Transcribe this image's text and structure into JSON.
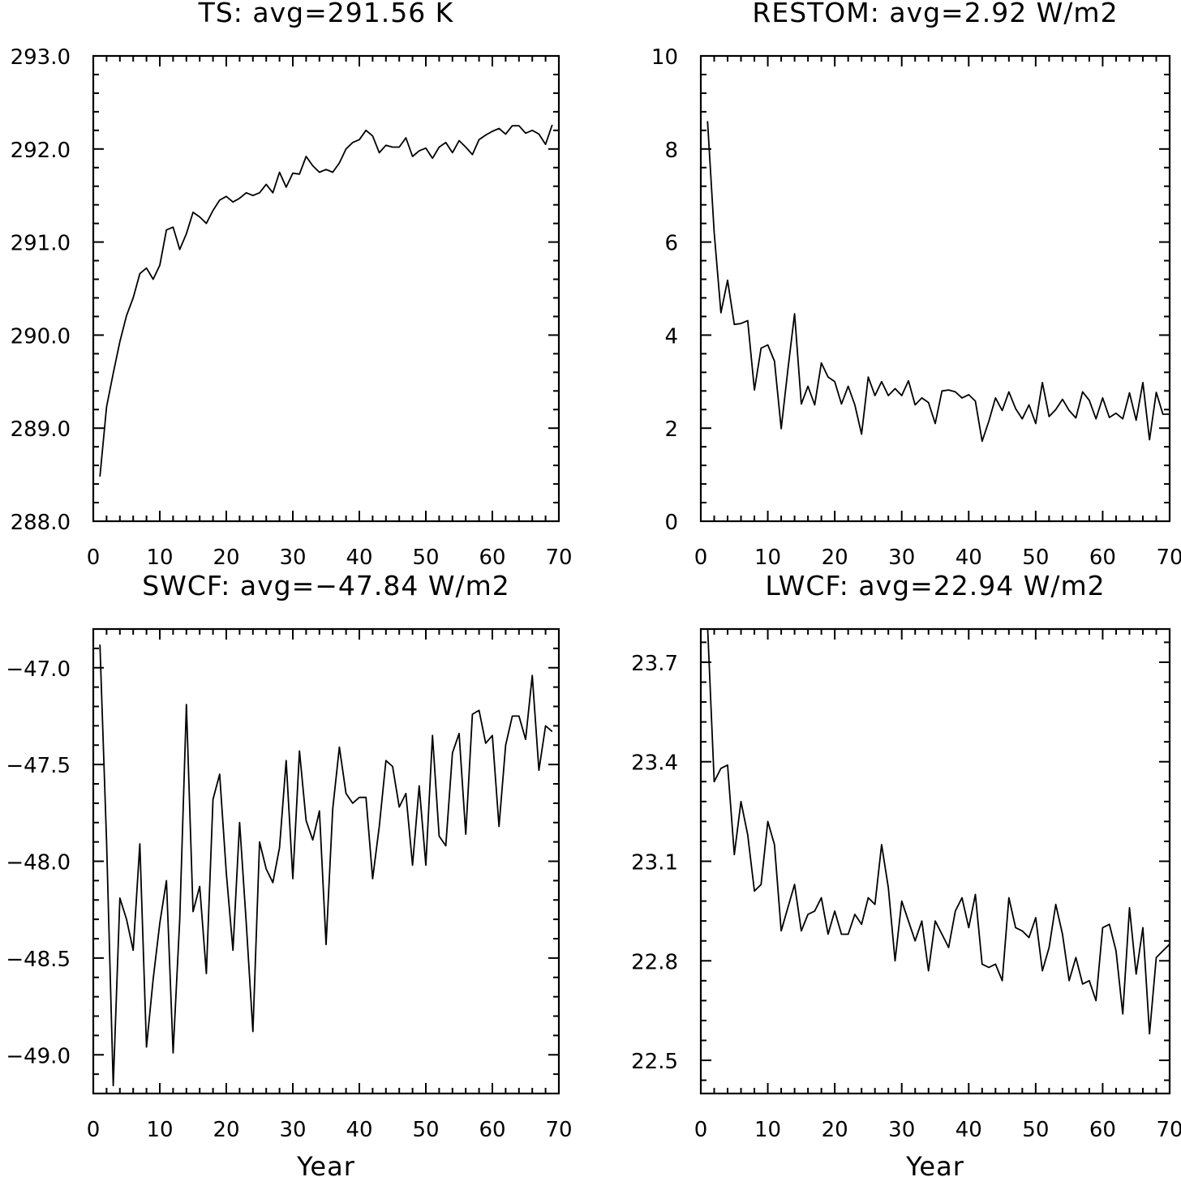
{
  "chart_data": [
    {
      "type": "line",
      "title": "TS: avg=291.56 K",
      "xlabel": "",
      "ylabel": "",
      "xlim": [
        0,
        70
      ],
      "ylim": [
        288.0,
        293.0
      ],
      "xticks": [
        0,
        10,
        20,
        30,
        40,
        50,
        60,
        70
      ],
      "xtick_labels": [
        "0",
        "10",
        "20",
        "30",
        "40",
        "50",
        "60",
        "70"
      ],
      "yticks": [
        288.0,
        289.0,
        290.0,
        291.0,
        292.0,
        293.0
      ],
      "ytick_labels": [
        "288.0",
        "289.0",
        "290.0",
        "291.0",
        "292.0",
        "293.0"
      ],
      "grid": false,
      "x": [
        1,
        2,
        3,
        4,
        5,
        6,
        7,
        8,
        9,
        10,
        11,
        12,
        13,
        14,
        15,
        16,
        17,
        18,
        19,
        20,
        21,
        22,
        23,
        24,
        25,
        26,
        27,
        28,
        29,
        30,
        31,
        32,
        33,
        34,
        35,
        36,
        37,
        38,
        39,
        40,
        41,
        42,
        43,
        44,
        45,
        46,
        47,
        48,
        49,
        50,
        51,
        52,
        53,
        54,
        55,
        56,
        57,
        58,
        59,
        60,
        61,
        62,
        63,
        64,
        65,
        66,
        67,
        68,
        69
      ],
      "series": [
        {
          "values": [
            288.48,
            289.23,
            289.59,
            289.93,
            290.21,
            290.4,
            290.66,
            290.72,
            290.6,
            290.75,
            291.13,
            291.16,
            290.92,
            291.09,
            291.32,
            291.27,
            291.2,
            291.34,
            291.45,
            291.49,
            291.43,
            291.47,
            291.53,
            291.5,
            291.53,
            291.62,
            291.53,
            291.75,
            291.59,
            291.74,
            291.73,
            291.92,
            291.82,
            291.75,
            291.78,
            291.75,
            291.85,
            292.0,
            292.07,
            292.1,
            292.2,
            292.14,
            291.96,
            292.04,
            292.02,
            292.02,
            292.12,
            291.92,
            291.98,
            292.01,
            291.9,
            292.02,
            292.07,
            291.96,
            292.09,
            292.02,
            291.94,
            292.1,
            292.15,
            292.19,
            292.22,
            292.16,
            292.25,
            292.25,
            292.17,
            292.2,
            292.16,
            292.05,
            292.26
          ]
        }
      ]
    },
    {
      "type": "line",
      "title": "RESTOM: avg=2.92 W/m2",
      "xlabel": "",
      "ylabel": "",
      "xlim": [
        0,
        70
      ],
      "ylim": [
        0,
        10
      ],
      "xticks": [
        0,
        10,
        20,
        30,
        40,
        50,
        60,
        70
      ],
      "xtick_labels": [
        "0",
        "10",
        "20",
        "30",
        "40",
        "50",
        "60",
        "70"
      ],
      "yticks": [
        0,
        2,
        4,
        6,
        8,
        10
      ],
      "ytick_labels": [
        "0",
        "2",
        "4",
        "6",
        "8",
        "10"
      ],
      "grid": false,
      "x": [
        1,
        2,
        3,
        4,
        5,
        6,
        7,
        8,
        9,
        10,
        11,
        12,
        13,
        14,
        15,
        16,
        17,
        18,
        19,
        20,
        21,
        22,
        23,
        24,
        25,
        26,
        27,
        28,
        29,
        30,
        31,
        32,
        33,
        34,
        35,
        36,
        37,
        38,
        39,
        40,
        41,
        42,
        43,
        44,
        45,
        46,
        47,
        48,
        49,
        50,
        51,
        52,
        53,
        54,
        55,
        56,
        57,
        58,
        59,
        60,
        61,
        62,
        63,
        64,
        65,
        66,
        67,
        68,
        69,
        70
      ],
      "series": [
        {
          "values": [
            8.6,
            6.2,
            4.48,
            5.18,
            4.23,
            4.25,
            4.31,
            2.82,
            3.72,
            3.79,
            3.44,
            1.99,
            3.25,
            4.46,
            2.52,
            2.9,
            2.5,
            3.4,
            3.1,
            3.0,
            2.52,
            2.9,
            2.5,
            1.87,
            3.1,
            2.7,
            3.0,
            2.7,
            2.85,
            2.7,
            3.02,
            2.5,
            2.65,
            2.55,
            2.1,
            2.8,
            2.82,
            2.78,
            2.65,
            2.72,
            2.58,
            1.72,
            2.15,
            2.65,
            2.38,
            2.78,
            2.42,
            2.2,
            2.5,
            2.1,
            2.98,
            2.25,
            2.4,
            2.62,
            2.38,
            2.22,
            2.78,
            2.6,
            2.2,
            2.65,
            2.23,
            2.32,
            2.2,
            2.76,
            2.17,
            2.98,
            1.75,
            2.77,
            2.3,
            2.3
          ]
        }
      ]
    },
    {
      "type": "line",
      "title": "SWCF: avg=−47.84 W/m2",
      "xlabel": "Year",
      "ylabel": "",
      "xlim": [
        0,
        70
      ],
      "ylim": [
        -49.2,
        -46.8
      ],
      "xticks": [
        0,
        10,
        20,
        30,
        40,
        50,
        60,
        70
      ],
      "xtick_labels": [
        "0",
        "10",
        "20",
        "30",
        "40",
        "50",
        "60",
        "70"
      ],
      "yticks": [
        -49.0,
        -48.5,
        -48.0,
        -47.5,
        -47.0
      ],
      "ytick_labels": [
        "−49.0",
        "−48.5",
        "−48.0",
        "−47.5",
        "−47.0"
      ],
      "grid": false,
      "x": [
        1,
        2,
        3,
        4,
        5,
        6,
        7,
        8,
        9,
        10,
        11,
        12,
        13,
        14,
        15,
        16,
        17,
        18,
        19,
        20,
        21,
        22,
        23,
        24,
        25,
        26,
        27,
        28,
        29,
        30,
        31,
        32,
        33,
        34,
        35,
        36,
        37,
        38,
        39,
        40,
        41,
        42,
        43,
        44,
        45,
        46,
        47,
        48,
        49,
        50,
        51,
        52,
        53,
        54,
        55,
        56,
        57,
        58,
        59,
        60,
        61,
        62,
        63,
        64,
        65,
        66,
        67,
        68,
        69
      ],
      "series": [
        {
          "values": [
            -46.88,
            -47.9,
            -49.16,
            -48.19,
            -48.3,
            -48.46,
            -47.91,
            -48.96,
            -48.61,
            -48.32,
            -48.1,
            -48.99,
            -48.3,
            -47.19,
            -48.26,
            -48.13,
            -48.58,
            -47.68,
            -47.55,
            -48.06,
            -48.46,
            -47.8,
            -48.32,
            -48.88,
            -47.9,
            -48.04,
            -48.11,
            -47.93,
            -47.48,
            -48.09,
            -47.43,
            -47.79,
            -47.89,
            -47.74,
            -48.43,
            -47.73,
            -47.41,
            -47.65,
            -47.7,
            -47.67,
            -47.67,
            -48.09,
            -47.82,
            -47.48,
            -47.51,
            -47.72,
            -47.65,
            -48.02,
            -47.61,
            -48.02,
            -47.35,
            -47.87,
            -47.92,
            -47.44,
            -47.34,
            -47.86,
            -47.24,
            -47.22,
            -47.39,
            -47.35,
            -47.82,
            -47.4,
            -47.25,
            -47.25,
            -47.37,
            -47.04,
            -47.53,
            -47.3,
            -47.33
          ]
        }
      ]
    },
    {
      "type": "line",
      "title": "LWCF: avg=22.94 W/m2",
      "xlabel": "Year",
      "ylabel": "",
      "xlim": [
        0,
        70
      ],
      "ylim": [
        22.4,
        23.8
      ],
      "xticks": [
        0,
        10,
        20,
        30,
        40,
        50,
        60,
        70
      ],
      "xtick_labels": [
        "0",
        "10",
        "20",
        "30",
        "40",
        "50",
        "60",
        "70"
      ],
      "yticks": [
        22.5,
        22.8,
        23.1,
        23.4,
        23.7
      ],
      "ytick_labels": [
        "22.5",
        "22.8",
        "23.1",
        "23.4",
        "23.7"
      ],
      "grid": false,
      "x": [
        1,
        2,
        3,
        4,
        5,
        6,
        7,
        8,
        9,
        10,
        11,
        12,
        13,
        14,
        15,
        16,
        17,
        18,
        19,
        20,
        21,
        22,
        23,
        24,
        25,
        26,
        27,
        28,
        29,
        30,
        31,
        32,
        33,
        34,
        35,
        36,
        37,
        38,
        39,
        40,
        41,
        42,
        43,
        44,
        45,
        46,
        47,
        48,
        49,
        50,
        51,
        52,
        53,
        54,
        55,
        56,
        57,
        58,
        59,
        60,
        61,
        62,
        63,
        64,
        65,
        66,
        67,
        68,
        69,
        70
      ],
      "series": [
        {
          "values": [
            23.81,
            23.34,
            23.38,
            23.39,
            23.12,
            23.28,
            23.18,
            23.01,
            23.03,
            23.22,
            23.15,
            22.89,
            22.96,
            23.03,
            22.89,
            22.94,
            22.95,
            22.99,
            22.88,
            22.95,
            22.88,
            22.88,
            22.94,
            22.91,
            22.99,
            22.97,
            23.15,
            23.02,
            22.8,
            22.98,
            22.92,
            22.86,
            22.92,
            22.77,
            22.92,
            22.88,
            22.84,
            22.95,
            22.99,
            22.9,
            23.0,
            22.79,
            22.78,
            22.79,
            22.74,
            22.99,
            22.9,
            22.89,
            22.87,
            22.93,
            22.77,
            22.84,
            22.97,
            22.88,
            22.74,
            22.81,
            22.73,
            22.74,
            22.68,
            22.9,
            22.91,
            22.83,
            22.64,
            22.96,
            22.76,
            22.9,
            22.58,
            22.81,
            22.83,
            22.85
          ]
        }
      ]
    }
  ]
}
